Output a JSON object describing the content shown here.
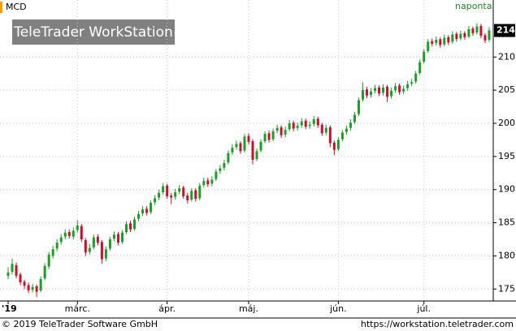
{
  "chart_data": {
    "type": "candlestick",
    "title": "MCD",
    "interval": "naponta",
    "watermark": "TeleTrader WorkStation",
    "copyright": "© 2019 TeleTrader Software GmbH",
    "url": "https://workstation.teletrader.com",
    "last_price": 214,
    "up_color": "#1e9c28",
    "down_color": "#c8102e",
    "grid": true,
    "ylim": [
      173.2,
      218.6
    ],
    "yticks": [
      175,
      180,
      185,
      190,
      195,
      200,
      205,
      210
    ],
    "xticks": [
      {
        "value": 0,
        "label": "'19"
      },
      {
        "value": 17,
        "label": "márc."
      },
      {
        "value": 39,
        "label": "ápr."
      },
      {
        "value": 59,
        "label": "máj."
      },
      {
        "value": 81,
        "label": "jún."
      },
      {
        "value": 102,
        "label": "júl."
      }
    ],
    "open": [
      177.0,
      177.6,
      178.6,
      177.2,
      176.1,
      175.6,
      174.9,
      175.4,
      174.8,
      176.6,
      178.4,
      180.0,
      181.1,
      182.1,
      182.9,
      183.6,
      182.9,
      183.9,
      184.5,
      182.4,
      180.6,
      181.3,
      182.9,
      182.1,
      179.6,
      181.1,
      182.6,
      183.3,
      182.1,
      183.6,
      184.9,
      184.1,
      185.6,
      186.4,
      187.1,
      186.6,
      188.1,
      188.8,
      189.6,
      190.6,
      189.1,
      188.9,
      189.7,
      190.3,
      189.1,
      188.5,
      189.9,
      188.7,
      190.7,
      191.4,
      190.9,
      191.6,
      192.8,
      193.3,
      194.1,
      195.6,
      196.4,
      197.0,
      195.9,
      198.1,
      197.3,
      194.6,
      195.9,
      197.3,
      198.5,
      197.6,
      198.9,
      199.4,
      198.3,
      199.1,
      200.1,
      199.3,
      199.7,
      200.4,
      199.6,
      199.9,
      200.7,
      199.8,
      198.6,
      199.4,
      197.1,
      196.1,
      197.6,
      198.7,
      199.3,
      200.2,
      201.4,
      203.6,
      205.1,
      204.3,
      204.9,
      205.4,
      204.6,
      205.5,
      204.1,
      205.0,
      205.7,
      204.8,
      205.3,
      206.0,
      206.3,
      207.6,
      209.3,
      210.9,
      212.4,
      212.1,
      212.7,
      211.9,
      213.0,
      212.3,
      213.5,
      212.8,
      213.6,
      213.1,
      214.3,
      213.7,
      214.7,
      213.3,
      212.6
    ],
    "high": [
      178.3,
      179.6,
      179.0,
      177.5,
      176.4,
      176.0,
      175.8,
      175.7,
      176.9,
      178.9,
      180.6,
      181.5,
      182.5,
      183.3,
      184.0,
      184.0,
      184.3,
      185.4,
      184.8,
      182.7,
      181.8,
      183.2,
      183.3,
      182.4,
      181.4,
      182.9,
      183.7,
      183.6,
      183.9,
      185.2,
      185.3,
      185.9,
      186.8,
      187.5,
      187.5,
      188.4,
      189.2,
      190.0,
      191.0,
      190.9,
      189.5,
      190.1,
      190.7,
      190.6,
      189.5,
      190.2,
      190.2,
      191.0,
      191.8,
      191.8,
      192.0,
      193.1,
      193.7,
      194.5,
      195.9,
      196.8,
      197.4,
      197.3,
      198.4,
      198.5,
      197.6,
      196.2,
      197.6,
      198.8,
      198.9,
      199.2,
      199.8,
      199.7,
      199.5,
      200.5,
      200.4,
      200.1,
      200.8,
      200.7,
      200.3,
      201.1,
      201.0,
      200.1,
      199.8,
      199.7,
      197.4,
      197.9,
      199.0,
      199.7,
      200.6,
      201.7,
      203.9,
      206.2,
      205.5,
      205.3,
      205.8,
      205.7,
      205.9,
      205.8,
      205.4,
      206.1,
      206.0,
      205.7,
      206.4,
      206.7,
      207.9,
      209.6,
      211.2,
      212.7,
      212.8,
      213.1,
      213.0,
      213.4,
      213.3,
      213.9,
      213.8,
      214.0,
      213.9,
      214.7,
      214.6,
      215.1,
      215.0,
      213.6,
      214.5
    ],
    "low": [
      176.5,
      177.2,
      176.6,
      175.6,
      175.0,
      174.4,
      174.5,
      173.8,
      174.5,
      176.3,
      178.0,
      179.6,
      180.7,
      181.7,
      182.5,
      182.6,
      182.5,
      183.5,
      182.1,
      180.0,
      180.2,
      181.0,
      181.6,
      178.8,
      179.2,
      180.8,
      182.2,
      181.6,
      181.8,
      183.3,
      183.6,
      183.8,
      185.2,
      186.0,
      186.1,
      186.3,
      187.7,
      188.4,
      189.2,
      188.6,
      187.8,
      188.5,
      189.3,
      188.6,
      187.9,
      188.2,
      188.2,
      188.4,
      190.3,
      190.4,
      190.5,
      191.3,
      192.4,
      192.9,
      193.8,
      195.2,
      196.0,
      195.4,
      195.6,
      196.8,
      193.8,
      194.3,
      195.6,
      197.0,
      197.1,
      197.3,
      198.5,
      197.8,
      197.9,
      198.8,
      198.8,
      198.9,
      199.3,
      199.1,
      199.2,
      199.5,
      199.3,
      198.1,
      198.2,
      196.4,
      195.2,
      195.8,
      197.3,
      198.3,
      198.9,
      199.9,
      201.1,
      203.3,
      203.8,
      203.9,
      204.5,
      204.1,
      204.2,
      203.2,
      203.7,
      204.6,
      204.3,
      204.4,
      204.9,
      205.6,
      206.0,
      207.3,
      209.0,
      210.6,
      211.6,
      211.7,
      211.4,
      211.6,
      211.8,
      212.0,
      212.3,
      212.5,
      212.6,
      212.8,
      213.2,
      213.4,
      212.8,
      212.1,
      212.3
    ],
    "close": [
      177.5,
      178.8,
      177.0,
      176.0,
      175.5,
      174.8,
      175.3,
      174.6,
      176.5,
      178.5,
      180.2,
      181.0,
      182.0,
      182.8,
      183.5,
      183.0,
      183.8,
      184.6,
      182.5,
      180.5,
      181.2,
      182.8,
      182.0,
      179.5,
      181.0,
      182.5,
      183.2,
      182.0,
      183.5,
      184.8,
      184.0,
      185.5,
      186.3,
      187.0,
      186.5,
      188.0,
      188.7,
      189.5,
      190.5,
      189.0,
      188.8,
      189.6,
      190.2,
      189.0,
      188.4,
      189.8,
      188.6,
      190.6,
      191.3,
      190.8,
      191.5,
      192.7,
      193.2,
      194.0,
      195.5,
      196.3,
      196.9,
      195.8,
      198.0,
      197.2,
      194.5,
      195.8,
      197.2,
      198.4,
      197.5,
      198.8,
      199.3,
      198.2,
      199.0,
      200.0,
      199.2,
      199.6,
      200.3,
      199.5,
      199.8,
      200.6,
      199.7,
      198.5,
      199.3,
      197.0,
      196.0,
      197.5,
      198.6,
      199.2,
      200.1,
      201.3,
      203.5,
      205.0,
      204.2,
      204.8,
      205.3,
      204.5,
      205.4,
      204.0,
      204.9,
      205.6,
      204.7,
      205.2,
      205.9,
      206.2,
      207.5,
      209.2,
      210.8,
      212.3,
      212.0,
      212.6,
      211.8,
      212.9,
      212.2,
      213.4,
      212.7,
      213.5,
      213.0,
      214.2,
      213.6,
      214.6,
      213.2,
      212.5,
      214.0
    ]
  }
}
